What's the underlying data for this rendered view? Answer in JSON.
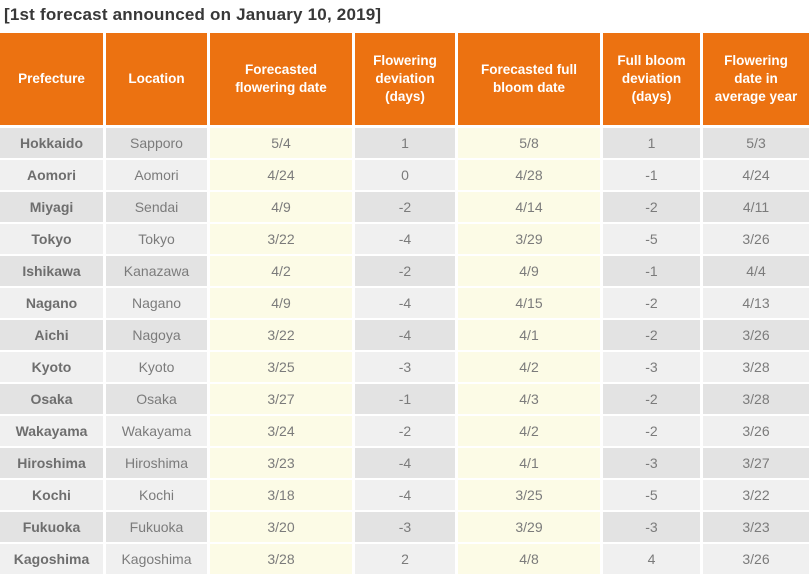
{
  "title": "[1st forecast announced on January 10, 2019]",
  "colors": {
    "header_bg": "#ec7211",
    "row_dark": "#e3e3e3",
    "row_light": "#f0f0f0",
    "forecast_column_cream": "#fcfbe6",
    "header_text": "#ffffff",
    "body_text": "#7b7b7b",
    "title_text": "#383838"
  },
  "chart_data": {
    "type": "table",
    "title": "[1st forecast announced on January 10, 2019]",
    "columns": [
      "Prefecture",
      "Location",
      "Forecasted flowering date",
      "Flowering deviation (days)",
      "Forecasted full bloom date",
      "Full bloom deviation (days)",
      "Flowering date in average year"
    ],
    "rows": [
      [
        "Hokkaido",
        "Sapporo",
        "5/4",
        "1",
        "5/8",
        "1",
        "5/3"
      ],
      [
        "Aomori",
        "Aomori",
        "4/24",
        "0",
        "4/28",
        "-1",
        "4/24"
      ],
      [
        "Miyagi",
        "Sendai",
        "4/9",
        "-2",
        "4/14",
        "-2",
        "4/11"
      ],
      [
        "Tokyo",
        "Tokyo",
        "3/22",
        "-4",
        "3/29",
        "-5",
        "3/26"
      ],
      [
        "Ishikawa",
        "Kanazawa",
        "4/2",
        "-2",
        "4/9",
        "-1",
        "4/4"
      ],
      [
        "Nagano",
        "Nagano",
        "4/9",
        "-4",
        "4/15",
        "-2",
        "4/13"
      ],
      [
        "Aichi",
        "Nagoya",
        "3/22",
        "-4",
        "4/1",
        "-2",
        "3/26"
      ],
      [
        "Kyoto",
        "Kyoto",
        "3/25",
        "-3",
        "4/2",
        "-3",
        "3/28"
      ],
      [
        "Osaka",
        "Osaka",
        "3/27",
        "-1",
        "4/3",
        "-2",
        "3/28"
      ],
      [
        "Wakayama",
        "Wakayama",
        "3/24",
        "-2",
        "4/2",
        "-2",
        "3/26"
      ],
      [
        "Hiroshima",
        "Hiroshima",
        "3/23",
        "-4",
        "4/1",
        "-3",
        "3/27"
      ],
      [
        "Kochi",
        "Kochi",
        "3/18",
        "-4",
        "3/25",
        "-5",
        "3/22"
      ],
      [
        "Fukuoka",
        "Fukuoka",
        "3/20",
        "-3",
        "3/29",
        "-3",
        "3/23"
      ],
      [
        "Kagoshima",
        "Kagoshima",
        "3/28",
        "2",
        "4/8",
        "4",
        "3/26"
      ]
    ]
  }
}
